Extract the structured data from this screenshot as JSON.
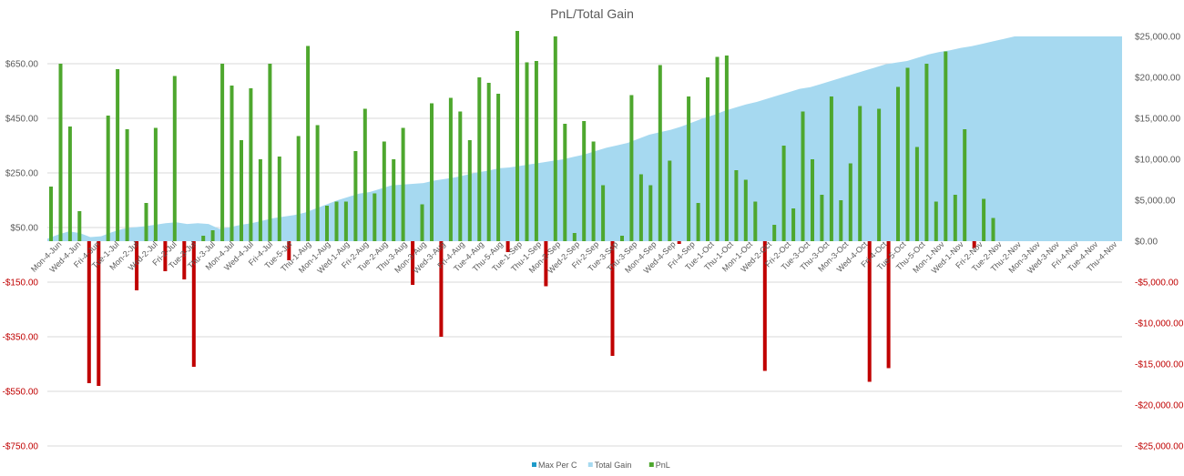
{
  "chart_data": {
    "type": "bar",
    "title": "PnL/Total Gain",
    "left_axis": {
      "range": [
        -750,
        750
      ],
      "ticks": [
        650,
        450,
        250,
        50,
        -150,
        -350,
        -550,
        -750
      ],
      "tick_labels": [
        "$650.00",
        "$450.00",
        "$250.00",
        "$50.00",
        "-$150.00",
        "-$350.00",
        "-$550.00",
        "-$750.00"
      ],
      "negative_color": "#c00000"
    },
    "right_axis": {
      "range": [
        -25000,
        25000
      ],
      "ticks": [
        25000,
        20000,
        15000,
        10000,
        5000,
        0,
        -5000,
        -10000,
        -15000,
        -20000,
        -25000
      ],
      "tick_labels": [
        "$25,000.00",
        "$20,000.00",
        "$15,000.00",
        "$10,000.00",
        "$5,000.00",
        "$0.00",
        "-$5,000.00",
        "-$10,000.00",
        "-$15,000.00",
        "-$20,000.00",
        "-$25,000.00"
      ],
      "negative_color": "#c00000"
    },
    "grid": true,
    "legend_position": "bottom",
    "legend": [
      {
        "name": "Max Per C",
        "color": "#1f9bc9"
      },
      {
        "name": "Total Gain",
        "color": "#a6d9f0"
      },
      {
        "name": "PnL",
        "color": "#4ea72e"
      }
    ],
    "x_tick_labels": [
      "Mon-4-Jun",
      "Wed-4-Jun",
      "Fri-4-Jun",
      "Tue-1-Jul",
      "Mon-2-Jul",
      "Wed-2-Jul",
      "Fri-2-Jul",
      "Tue-3-Jul",
      "Thu-3-Jul",
      "Mon-4-Jul",
      "Wed-4-Jul",
      "Fri-4-Jul",
      "Tue-5-Jul",
      "Thu-1-Aug",
      "Mon-1-Aug",
      "Wed-1-Aug",
      "Fri-2-Aug",
      "Tue-2-Aug",
      "Thu-3-Aug",
      "Mon-3-Aug",
      "Wed-3-Aug",
      "Fri-4-Aug",
      "Tue-4-Aug",
      "Thu-5-Aug",
      "Tue-1-Sep",
      "Thu-1-Sep",
      "Mon-2-Sep",
      "Wed-2-Sep",
      "Fri-2-Sep",
      "Tue-3-Sep",
      "Thu-3-Sep",
      "Mon-4-Sep",
      "Wed-4-Sep",
      "Fri-4-Sep",
      "Tue-1-Oct",
      "Thu-1-Oct",
      "Mon-1-Oct",
      "Wed-2-Oct",
      "Fri-2-Oct",
      "Tue-3-Oct",
      "Thu-3-Oct",
      "Mon-3-Oct",
      "Wed-4-Oct",
      "Fri-4-Oct",
      "Tue-5-Oct",
      "Thu-5-Oct",
      "Mon-1-Nov",
      "Wed-1-Nov",
      "Fri-2-Nov",
      "Tue-2-Nov",
      "Thu-2-Nov",
      "Mon-3-Nov",
      "Wed-3-Nov",
      "Fri-4-Nov",
      "Tue-4-Nov",
      "Thu-4-Nov"
    ],
    "series": [
      {
        "name": "PnL",
        "axis": "left",
        "color_positive": "#4ea72e",
        "color_negative": "#c00000",
        "values": [
          200,
          650,
          420,
          110,
          -520,
          -530,
          460,
          630,
          410,
          -180,
          140,
          415,
          -110,
          605,
          -140,
          -460,
          20,
          40,
          650,
          570,
          370,
          560,
          300,
          650,
          310,
          -70,
          385,
          715,
          425,
          130,
          145,
          145,
          330,
          485,
          175,
          365,
          300,
          415,
          -160,
          135,
          505,
          -350,
          525,
          475,
          370,
          600,
          580,
          540,
          -40,
          770,
          655,
          660,
          -165,
          750,
          430,
          30,
          440,
          365,
          205,
          -420,
          20,
          535,
          245,
          205,
          645,
          295,
          -10,
          530,
          140,
          600,
          675,
          680,
          260,
          225,
          145,
          -475,
          60,
          350,
          120,
          475,
          300,
          170,
          530,
          150,
          285,
          495,
          -515,
          485,
          -465,
          565,
          635,
          345,
          650,
          145,
          695,
          170,
          410,
          -25,
          155,
          85
        ],
        "pattern": "one value per trading day, 100 values"
      },
      {
        "name": "Total Gain",
        "axis": "right",
        "color": "#a6d9f0",
        "values": [
          300,
          800,
          1200,
          1000,
          500,
          600,
          1100,
          1500,
          1700,
          1800,
          2000,
          2200,
          2300,
          2100,
          2200,
          2100,
          1500,
          1700,
          2000,
          2200,
          2500,
          2800,
          3000,
          3200,
          3500,
          4000,
          4500,
          5000,
          5400,
          5800,
          6000,
          6400,
          6800,
          6900,
          7000,
          7100,
          7400,
          7600,
          7800,
          8100,
          8400,
          8600,
          8900,
          9000,
          9200,
          9400,
          9600,
          9800,
          10000,
          10300,
          10600,
          11000,
          11400,
          11700,
          12000,
          12500,
          13000,
          13300,
          13600,
          14000,
          14500,
          15000,
          15400,
          15900,
          16300,
          16700,
          17000,
          17400,
          17800,
          18200,
          18600,
          18800,
          19200,
          19600,
          20000,
          20400,
          20800,
          21200,
          21600,
          21800,
          22000,
          22400,
          22800,
          23100,
          23300,
          23600,
          23800,
          24100,
          24400,
          24700,
          25000,
          25000,
          25000,
          25000,
          25000,
          25000,
          25000,
          25000,
          25000,
          25000
        ],
        "pattern": "cumulative area"
      },
      {
        "name": "Max Per C",
        "axis": "left",
        "color": "#1f9bc9",
        "values": []
      }
    ]
  }
}
